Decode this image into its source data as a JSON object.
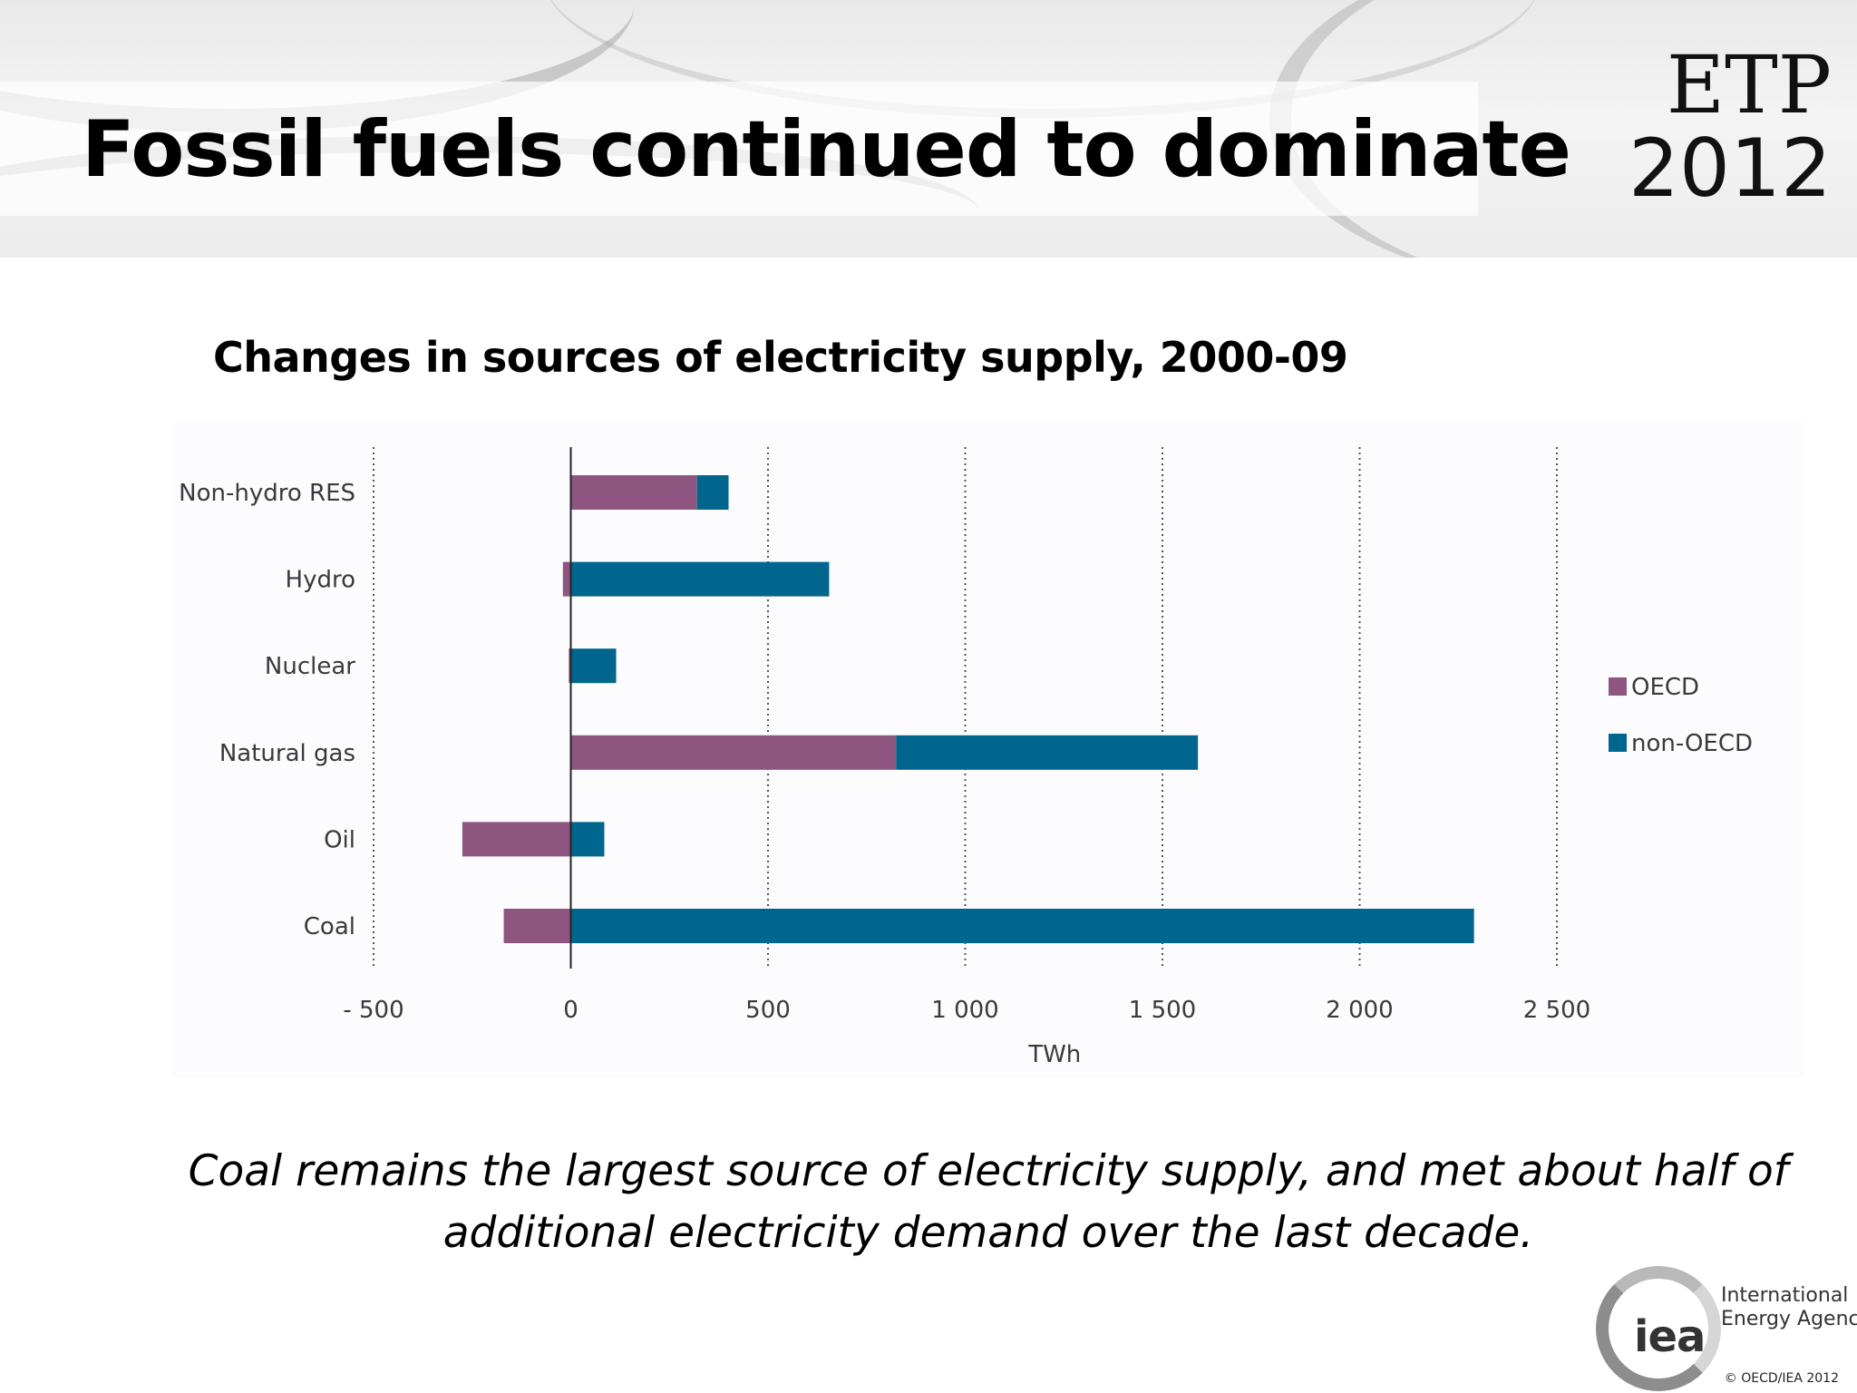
{
  "slide": {
    "title": "Fossil fuels continued to dominate",
    "logo_line1": "ETP",
    "logo_line2": "2012",
    "chart_heading": "Changes in sources of electricity supply, 2000-09",
    "caption_line1": "Coal remains the largest source of electricity supply, and met about half of",
    "caption_line2": "additional electricity demand over the last decade.",
    "iea_mark": "iea",
    "iea_name_line1": "International",
    "iea_name_line2": "Energy Agency",
    "copyright": "© OECD/IEA 2012"
  },
  "chart_data": {
    "type": "bar",
    "orientation": "horizontal",
    "stacked": true,
    "categories": [
      "Non-hydro RES",
      "Hydro",
      "Nuclear",
      "Natural gas",
      "Oil",
      "Coal"
    ],
    "series": [
      {
        "name": "OECD",
        "values": [
          320,
          -20,
          -5,
          825,
          -275,
          -170
        ],
        "color": "#8e5580"
      },
      {
        "name": "non-OECD",
        "values": [
          80,
          655,
          115,
          765,
          85,
          2290
        ],
        "color": "#00668e"
      }
    ],
    "xlabel": "TWh",
    "ylabel": "",
    "xlim": [
      -500,
      2500
    ],
    "x_ticks": [
      -500,
      0,
      500,
      1000,
      1500,
      2000,
      2500
    ],
    "x_tick_labels": [
      "- 500",
      "0",
      "500",
      "1 000",
      "1 500",
      "2 000",
      "2 500"
    ],
    "grid": "vertical dotted",
    "legend_position": "right"
  }
}
